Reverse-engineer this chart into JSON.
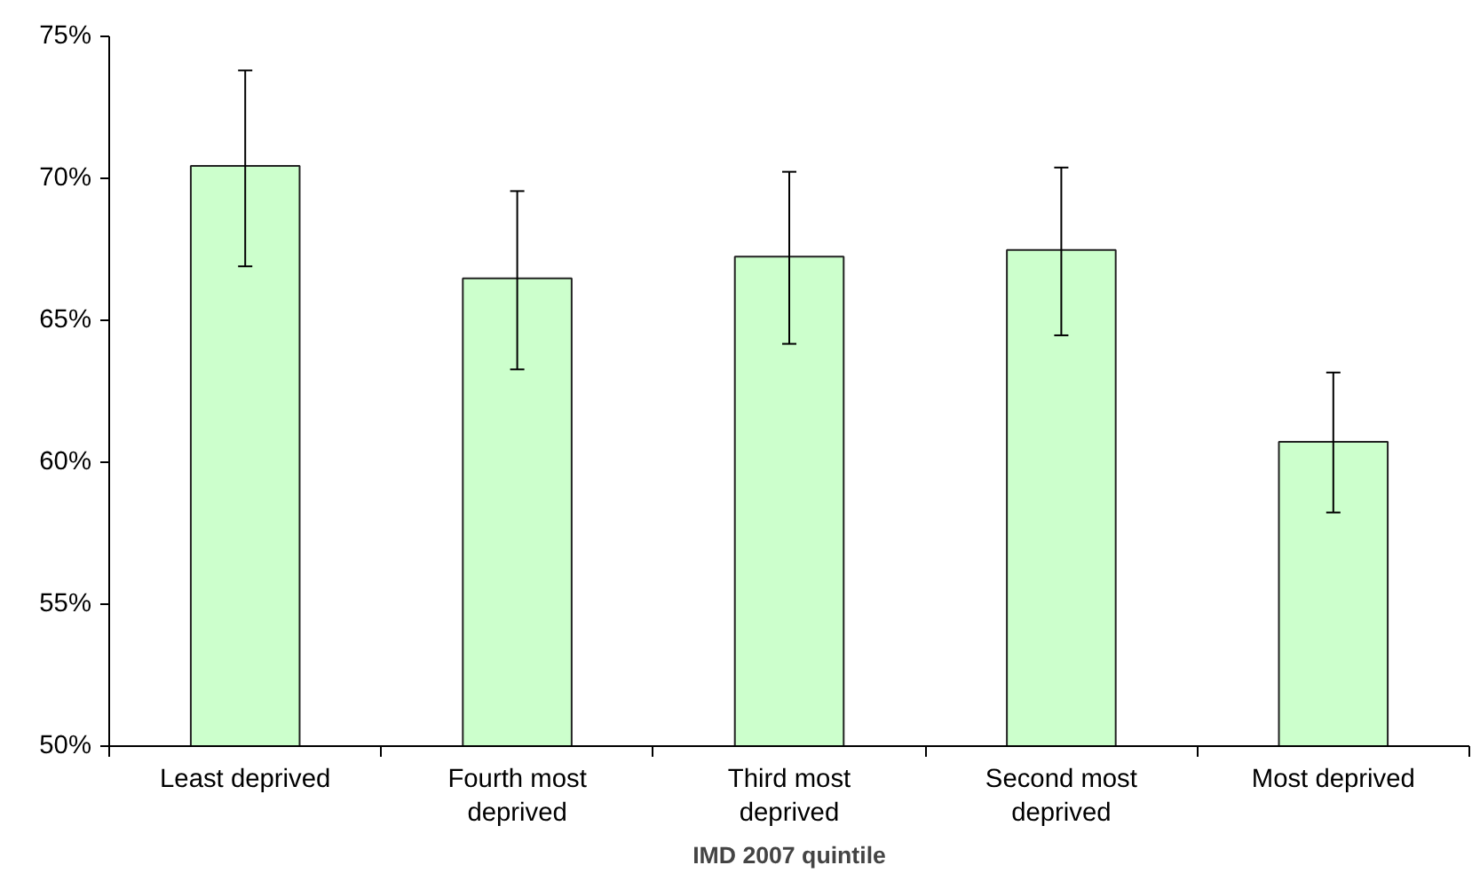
{
  "chart_data": {
    "type": "bar",
    "xlabel": "IMD 2007 quintile",
    "categories": [
      "Least deprived",
      "Fourth most deprived",
      "Third most deprived",
      "Second most deprived",
      "Most deprived"
    ],
    "values": [
      70.44,
      66.48,
      67.24,
      67.48,
      60.72
    ],
    "errors": [
      [
        66.9,
        73.8
      ],
      [
        63.27,
        69.55
      ],
      [
        64.17,
        70.23
      ],
      [
        64.47,
        70.38
      ],
      [
        58.23,
        63.16
      ]
    ],
    "color": "#ccffcc",
    "ylim": [
      50,
      75
    ],
    "yticks": [
      {
        "value": 50,
        "label": "50%"
      },
      {
        "value": 55,
        "label": "55%"
      },
      {
        "value": 60,
        "label": "60%"
      },
      {
        "value": 65,
        "label": "65%"
      },
      {
        "value": 70,
        "label": "70%"
      },
      {
        "value": 75,
        "label": "75%"
      }
    ],
    "grid": false
  }
}
